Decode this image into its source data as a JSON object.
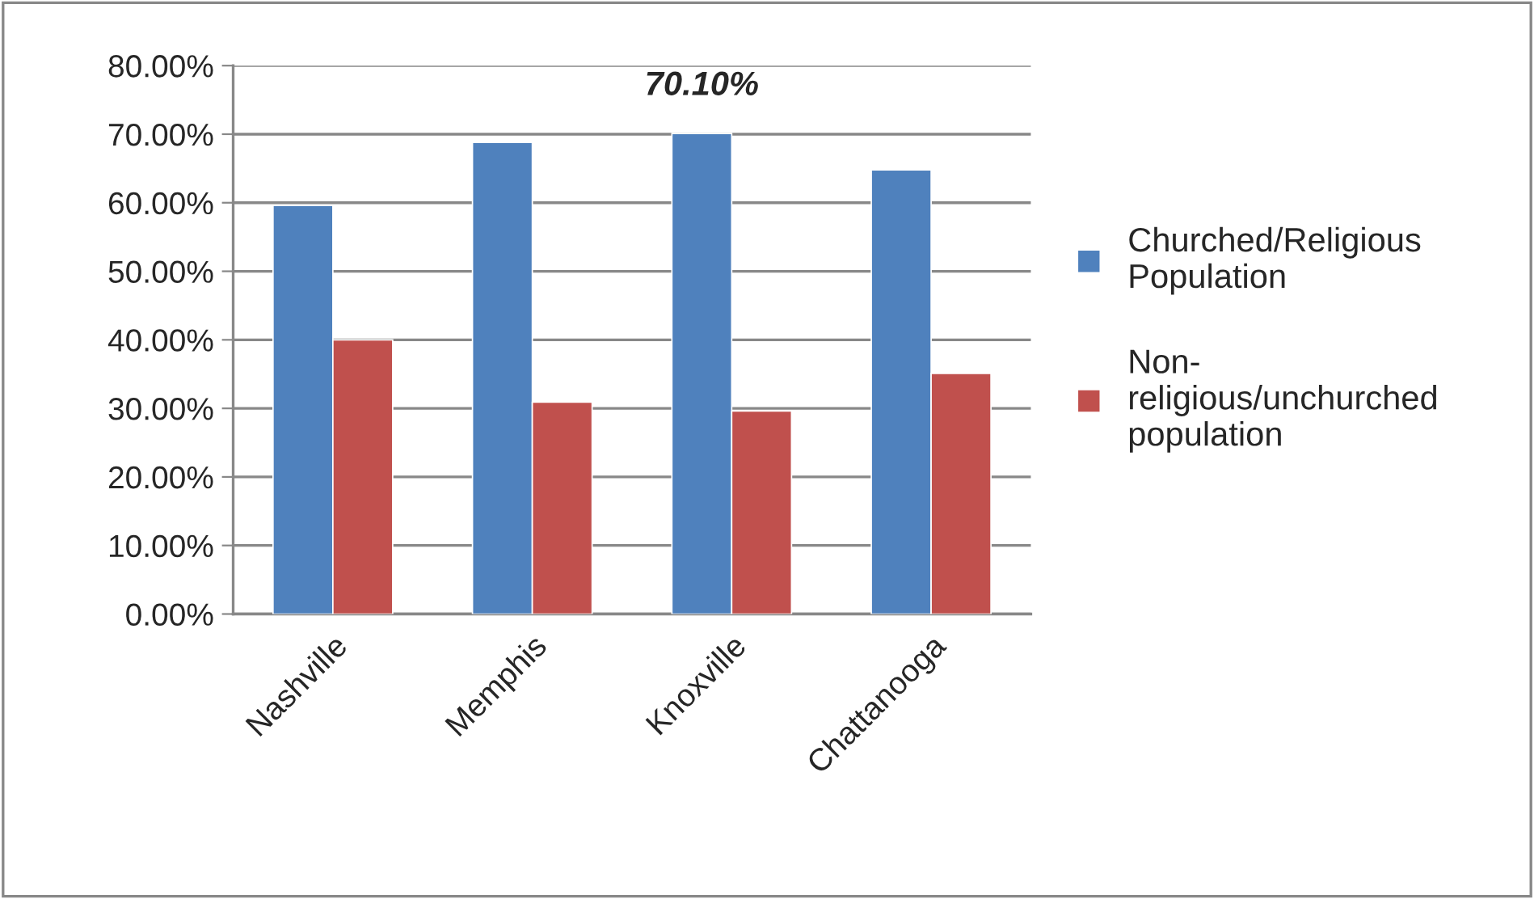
{
  "chart_data": {
    "type": "bar",
    "categories": [
      "Nashville",
      "Memphis",
      "Knoxville",
      "Chattanooga"
    ],
    "series": [
      {
        "name": "Churched/Religious Population",
        "color": "#4f81bd",
        "values": [
          59.6,
          68.8,
          70.1,
          64.8
        ],
        "value_labels": [
          null,
          null,
          "70.10%",
          null
        ]
      },
      {
        "name": "Non-religious/unchurched population",
        "color": "#c0504d",
        "values": [
          40.0,
          30.9,
          29.6,
          35.1
        ]
      }
    ],
    "ylim": [
      0,
      80
    ],
    "yticks": [
      {
        "value": 0,
        "label": "0.00%"
      },
      {
        "value": 10,
        "label": "10.00%"
      },
      {
        "value": 20,
        "label": "20.00%"
      },
      {
        "value": 30,
        "label": "30.00%"
      },
      {
        "value": 40,
        "label": "40.00%"
      },
      {
        "value": 50,
        "label": "50.00%"
      },
      {
        "value": 60,
        "label": "60.00%"
      },
      {
        "value": 70,
        "label": "70.00%"
      },
      {
        "value": 80,
        "label": "80.00%"
      }
    ],
    "grid": "y",
    "legend": "right"
  }
}
